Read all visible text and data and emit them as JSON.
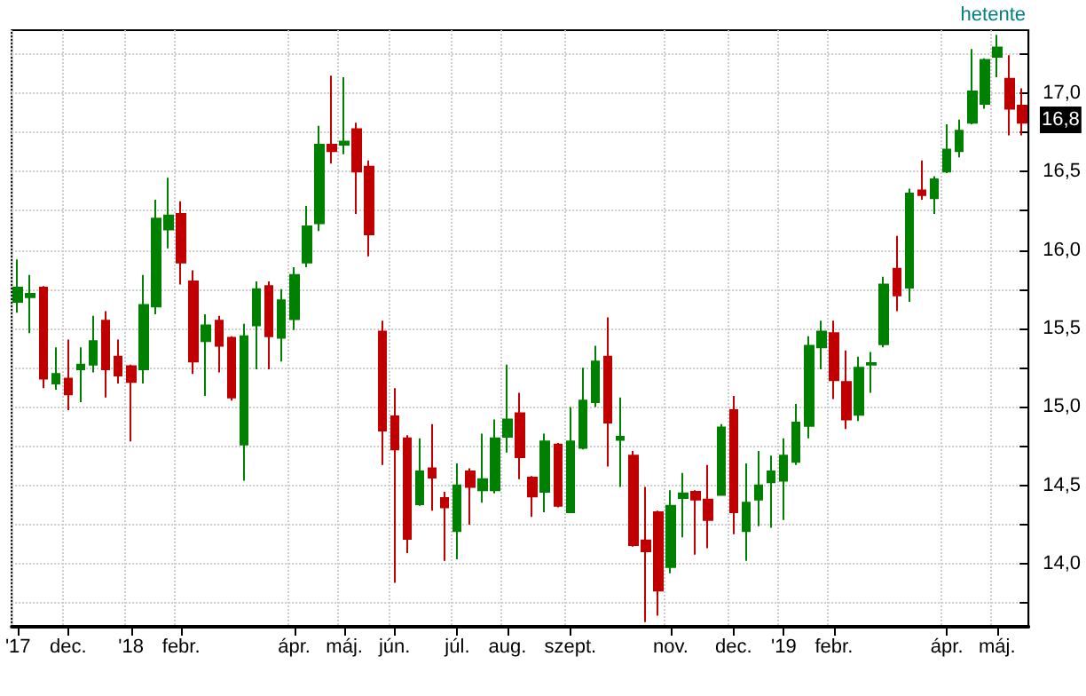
{
  "chart_data": {
    "type": "candlestick",
    "categories": [
      "'17",
      null,
      null,
      null,
      "dec.",
      null,
      null,
      null,
      null,
      "'18",
      null,
      null,
      null,
      "febr.",
      null,
      null,
      null,
      null,
      null,
      null,
      null,
      null,
      "ápr.",
      null,
      null,
      null,
      "máj.",
      null,
      null,
      null,
      "jún.",
      null,
      null,
      null,
      null,
      "júl.",
      null,
      null,
      null,
      "aug.",
      null,
      null,
      null,
      null,
      "szept.",
      null,
      null,
      null,
      null,
      null,
      null,
      null,
      "nov.",
      null,
      null,
      null,
      null,
      "dec.",
      null,
      null,
      null,
      "'19",
      null,
      null,
      null,
      "febr.",
      null,
      null,
      null,
      null,
      null,
      null,
      null,
      null,
      "ápr.",
      null,
      null,
      null,
      "máj.",
      null,
      null
    ],
    "ohlc": [
      [
        15.67,
        15.94,
        15.6,
        15.76
      ],
      [
        15.7,
        15.84,
        15.47,
        15.72
      ],
      [
        15.76,
        15.77,
        15.12,
        15.18
      ],
      [
        15.15,
        15.38,
        15.11,
        15.21
      ],
      [
        15.18,
        15.43,
        14.98,
        15.08
      ],
      [
        15.24,
        15.38,
        15.03,
        15.27
      ],
      [
        15.27,
        15.58,
        15.22,
        15.42
      ],
      [
        15.55,
        15.61,
        15.06,
        15.24
      ],
      [
        15.32,
        15.43,
        15.15,
        15.2
      ],
      [
        15.26,
        15.27,
        14.78,
        15.16
      ],
      [
        15.24,
        15.84,
        15.15,
        15.65
      ],
      [
        15.64,
        16.32,
        15.59,
        16.2
      ],
      [
        16.13,
        16.46,
        16.01,
        16.22
      ],
      [
        16.23,
        16.31,
        15.78,
        15.92
      ],
      [
        15.8,
        15.87,
        15.21,
        15.29
      ],
      [
        15.42,
        15.59,
        15.07,
        15.52
      ],
      [
        15.55,
        15.58,
        15.22,
        15.39
      ],
      [
        15.44,
        15.45,
        15.04,
        15.06
      ],
      [
        14.76,
        15.53,
        14.53,
        15.45
      ],
      [
        15.52,
        15.8,
        15.24,
        15.75
      ],
      [
        15.77,
        15.8,
        15.24,
        15.45
      ],
      [
        15.44,
        15.75,
        15.29,
        15.68
      ],
      [
        15.56,
        15.89,
        15.49,
        15.84
      ],
      [
        15.92,
        16.28,
        15.89,
        16.15
      ],
      [
        16.17,
        16.79,
        16.12,
        16.67
      ],
      [
        16.67,
        17.11,
        16.55,
        16.63
      ],
      [
        16.67,
        17.1,
        16.61,
        16.69
      ],
      [
        16.77,
        16.81,
        16.23,
        16.5
      ],
      [
        16.53,
        16.57,
        15.96,
        16.1
      ],
      [
        15.48,
        15.55,
        14.63,
        14.85
      ],
      [
        14.94,
        15.12,
        13.88,
        14.73
      ],
      [
        14.8,
        14.82,
        14.07,
        14.16
      ],
      [
        14.38,
        14.8,
        14.37,
        14.59
      ],
      [
        14.61,
        14.89,
        14.34,
        14.55
      ],
      [
        14.42,
        14.46,
        14.02,
        14.36
      ],
      [
        14.21,
        14.64,
        14.03,
        14.5
      ],
      [
        14.59,
        14.61,
        14.25,
        14.49
      ],
      [
        14.47,
        14.83,
        14.39,
        14.54
      ],
      [
        14.47,
        14.92,
        14.45,
        14.8
      ],
      [
        14.81,
        15.27,
        14.71,
        14.92
      ],
      [
        14.96,
        15.09,
        14.54,
        14.68
      ],
      [
        14.55,
        14.56,
        14.3,
        14.43
      ],
      [
        14.46,
        14.83,
        14.33,
        14.78
      ],
      [
        14.76,
        14.77,
        14.36,
        14.37
      ],
      [
        14.33,
        15.0,
        14.33,
        14.78
      ],
      [
        14.74,
        15.25,
        14.73,
        15.04
      ],
      [
        15.03,
        15.39,
        15.0,
        15.29
      ],
      [
        15.32,
        15.57,
        14.62,
        14.9
      ],
      [
        14.79,
        15.06,
        14.49,
        14.81
      ],
      [
        14.69,
        14.72,
        14.11,
        14.12
      ],
      [
        14.15,
        14.49,
        13.63,
        14.08
      ],
      [
        14.33,
        14.34,
        13.67,
        13.83
      ],
      [
        13.98,
        14.47,
        13.94,
        14.37
      ],
      [
        14.42,
        14.58,
        14.17,
        14.45
      ],
      [
        14.46,
        14.47,
        14.06,
        14.41
      ],
      [
        14.41,
        14.63,
        14.1,
        14.28
      ],
      [
        14.44,
        14.89,
        14.44,
        14.87
      ],
      [
        14.98,
        15.07,
        14.19,
        14.33
      ],
      [
        14.21,
        14.64,
        14.02,
        14.39
      ],
      [
        14.41,
        14.72,
        14.24,
        14.5
      ],
      [
        14.52,
        14.69,
        14.23,
        14.59
      ],
      [
        14.53,
        14.8,
        14.28,
        14.69
      ],
      [
        14.65,
        15.02,
        14.63,
        14.9
      ],
      [
        14.88,
        15.45,
        14.8,
        15.39
      ],
      [
        15.38,
        15.55,
        15.24,
        15.48
      ],
      [
        15.47,
        15.55,
        15.05,
        15.17
      ],
      [
        15.16,
        15.36,
        14.86,
        14.92
      ],
      [
        14.95,
        15.32,
        14.91,
        15.25
      ],
      [
        15.27,
        15.35,
        15.09,
        15.28
      ],
      [
        15.4,
        15.83,
        15.38,
        15.78
      ],
      [
        15.88,
        16.09,
        15.61,
        15.71
      ],
      [
        15.76,
        16.39,
        15.67,
        16.36
      ],
      [
        16.38,
        16.57,
        16.32,
        16.35
      ],
      [
        16.33,
        16.47,
        16.23,
        16.45
      ],
      [
        16.5,
        16.8,
        16.49,
        16.64
      ],
      [
        16.63,
        16.83,
        16.59,
        16.76
      ],
      [
        16.81,
        17.28,
        16.8,
        17.01
      ],
      [
        16.93,
        17.22,
        16.9,
        17.21
      ],
      [
        17.23,
        17.37,
        17.1,
        17.29
      ],
      [
        17.09,
        17.24,
        16.73,
        16.9
      ],
      [
        16.92,
        17.03,
        16.73,
        16.81
      ]
    ],
    "colors": [
      "#008000",
      "#008000",
      "#c00000",
      "#008000",
      "#c00000",
      "#008000",
      "#008000",
      "#c00000",
      "#c00000",
      "#c00000",
      "#008000",
      "#008000",
      "#008000",
      "#c00000",
      "#c00000",
      "#008000",
      "#c00000",
      "#c00000",
      "#008000",
      "#008000",
      "#c00000",
      "#008000",
      "#008000",
      "#008000",
      "#008000",
      "#c00000",
      "#008000",
      "#c00000",
      "#c00000",
      "#c00000",
      "#c00000",
      "#c00000",
      "#008000",
      "#c00000",
      "#c00000",
      "#008000",
      "#c00000",
      "#008000",
      "#008000",
      "#008000",
      "#c00000",
      "#c00000",
      "#008000",
      "#c00000",
      "#008000",
      "#008000",
      "#008000",
      "#c00000",
      "#008000",
      "#c00000",
      "#c00000",
      "#c00000",
      "#008000",
      "#008000",
      "#c00000",
      "#c00000",
      "#008000",
      "#c00000",
      "#008000",
      "#008000",
      "#008000",
      "#008000",
      "#008000",
      "#008000",
      "#008000",
      "#c00000",
      "#c00000",
      "#008000",
      "#008000",
      "#008000",
      "#c00000",
      "#008000",
      "#c00000",
      "#008000",
      "#008000",
      "#008000",
      "#008000",
      "#008000",
      "#008000",
      "#c00000",
      "#c00000"
    ],
    "ylim": [
      13.6,
      17.4
    ],
    "yticks": [
      {
        "value": 13.75,
        "label": null
      },
      {
        "value": 14,
        "label": "14,0"
      },
      {
        "value": 14.25,
        "label": null
      },
      {
        "value": 14.5,
        "label": "14,5"
      },
      {
        "value": 14.75,
        "label": null
      },
      {
        "value": 15,
        "label": "15,0"
      },
      {
        "value": 15.25,
        "label": null
      },
      {
        "value": 15.5,
        "label": "15,5"
      },
      {
        "value": 15.75,
        "label": null
      },
      {
        "value": 16,
        "label": "16,0"
      },
      {
        "value": 16.25,
        "label": null
      },
      {
        "value": 16.5,
        "label": "16,5"
      },
      {
        "value": 16.75,
        "label": null
      },
      {
        "value": 17,
        "label": "17,0"
      },
      {
        "value": 17.25,
        "label": null
      }
    ],
    "grid": true,
    "annotations": [
      "hetente",
      "16,8"
    ]
  }
}
